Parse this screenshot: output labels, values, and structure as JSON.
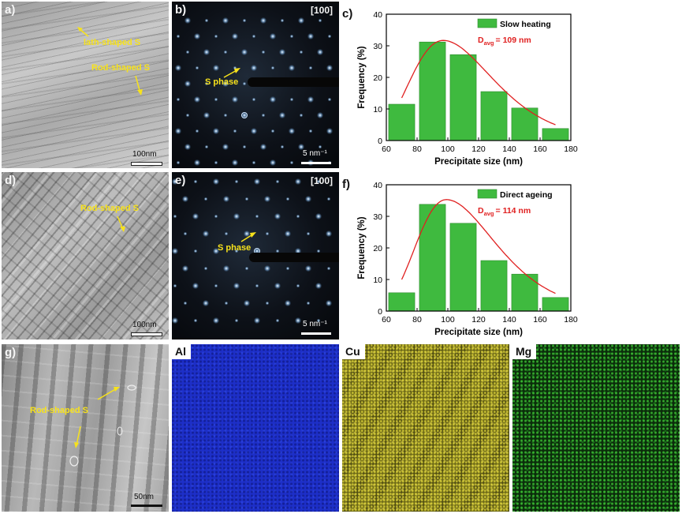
{
  "panels": {
    "a": {
      "label": "a)",
      "annotations": [
        "lath-shaped S",
        "Rod-shaped S"
      ],
      "scalebar": "100nm"
    },
    "b": {
      "label": "b)",
      "zone_axis": "[100]",
      "annotation": "S phase",
      "scalebar": "5 nm⁻¹"
    },
    "d": {
      "label": "d)",
      "annotation": "Rod-shaped S",
      "scalebar": "100nm"
    },
    "e": {
      "label": "e)",
      "zone_axis": "[100]",
      "annotation": "S phase",
      "scalebar": "5 nm⁻¹"
    },
    "g": {
      "label": "g)",
      "annotation": "Rod-shaped S",
      "scalebar": "50nm"
    },
    "maps": [
      {
        "element": "Al",
        "color": "#1d2fc8"
      },
      {
        "element": "Cu",
        "color": "#d9cf30"
      },
      {
        "element": "Mg",
        "color": "#36c02e"
      }
    ]
  },
  "colors": {
    "bar": "#3fba3f",
    "bar_edge": "#2e8b2e",
    "fit": "#e02020",
    "annotation": "#f7e21b",
    "davg": "#e02020"
  },
  "chart_data": [
    {
      "type": "bar",
      "panel_label": "c)",
      "x": [
        70,
        90,
        110,
        130,
        150,
        170
      ],
      "values": [
        11.5,
        31.2,
        27.2,
        15.5,
        10.3,
        3.8
      ],
      "bin_width": 20,
      "series": [
        {
          "name": "Slow heating",
          "values": [
            11.5,
            31.2,
            27.2,
            15.5,
            10.3,
            3.8
          ]
        }
      ],
      "fit_curve": {
        "type": "lognormal",
        "peak_x": 97,
        "peak_y": 31.7,
        "start_x": 70,
        "start_y": 13.5,
        "end_x": 170,
        "end_y": 5.0
      },
      "davg": {
        "symbol": "D",
        "subscript": "avg",
        "text": "= 109 nm"
      },
      "xlabel": "Precipitate size (nm)",
      "ylabel": "Frequency (%)",
      "xlim": [
        60,
        180
      ],
      "ylim": [
        0,
        40
      ],
      "xticks": [
        60,
        80,
        100,
        120,
        140,
        160,
        180
      ],
      "yticks": [
        0,
        10,
        20,
        30,
        40
      ],
      "legend": "top-right",
      "grid": false
    },
    {
      "type": "bar",
      "panel_label": "f)",
      "x": [
        70,
        90,
        110,
        130,
        150,
        170
      ],
      "values": [
        5.8,
        33.8,
        27.8,
        16.0,
        11.7,
        4.3
      ],
      "bin_width": 20,
      "series": [
        {
          "name": "Direct ageing",
          "values": [
            5.8,
            33.8,
            27.8,
            16.0,
            11.7,
            4.3
          ]
        }
      ],
      "fit_curve": {
        "type": "lognormal",
        "peak_x": 99,
        "peak_y": 35.3,
        "start_x": 70,
        "start_y": 10.0,
        "end_x": 170,
        "end_y": 5.6
      },
      "davg": {
        "symbol": "D",
        "subscript": "avg",
        "text": "= 114 nm"
      },
      "xlabel": "Precipitate size (nm)",
      "ylabel": "Frequency (%)",
      "xlim": [
        60,
        180
      ],
      "ylim": [
        0,
        40
      ],
      "xticks": [
        60,
        80,
        100,
        120,
        140,
        160,
        180
      ],
      "yticks": [
        0,
        10,
        20,
        30,
        40
      ],
      "legend": "top-right",
      "grid": false
    }
  ]
}
